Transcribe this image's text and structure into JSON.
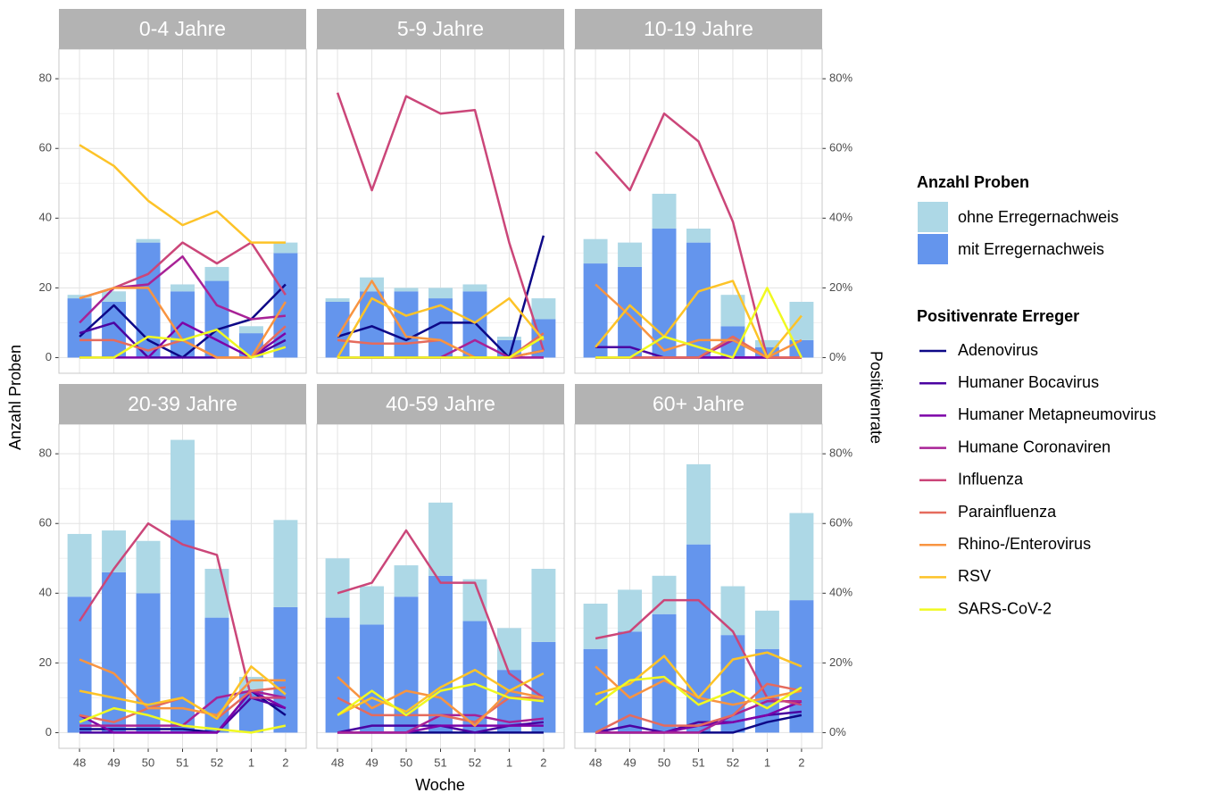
{
  "chart_data": {
    "type": "bar",
    "x_label": "Woche",
    "y_label": "Anzahl Proben",
    "y2_label": "Positivenrate",
    "bar_legend_title": "Anzahl Proben",
    "line_legend_title": "Positivenrate Erreger",
    "categories": [
      "48",
      "49",
      "50",
      "51",
      "52",
      "1",
      "2"
    ],
    "facets": [
      "0-4 Jahre",
      "5-9 Jahre",
      "10-19 Jahre",
      "20-39 Jahre",
      "40-59 Jahre",
      "60+ Jahre"
    ],
    "ylim": [
      -4.5,
      88.5
    ],
    "yticks": [
      0,
      20,
      40,
      60,
      80
    ],
    "y2lim": [
      -4.5,
      88.5
    ],
    "y2ticks": [
      {
        "value": 0,
        "label": "0%"
      },
      {
        "value": 20,
        "label": "20%"
      },
      {
        "value": 40,
        "label": "40%"
      },
      {
        "value": 60,
        "label": "60%"
      },
      {
        "value": 80,
        "label": "80%"
      }
    ],
    "grid": true,
    "series": [
      {
        "name": "ohne Erregernachweis",
        "type": "bar",
        "color": "#add8e6",
        "values": [
          [
            1,
            3,
            1,
            2,
            4,
            2,
            3
          ],
          [
            1,
            4,
            1,
            3,
            2,
            1,
            6
          ],
          [
            7,
            7,
            10,
            4,
            9,
            2,
            11
          ],
          [
            18,
            12,
            15,
            23,
            14,
            4,
            25
          ],
          [
            17,
            11,
            9,
            21,
            12,
            12,
            21
          ],
          [
            13,
            12,
            11,
            23,
            14,
            11,
            25
          ]
        ]
      },
      {
        "name": "mit Erregernachweis",
        "type": "bar",
        "color": "#6495ed",
        "values": [
          [
            17,
            16,
            33,
            19,
            22,
            7,
            30
          ],
          [
            16,
            19,
            19,
            17,
            19,
            5,
            11
          ],
          [
            27,
            26,
            37,
            33,
            9,
            3,
            5
          ],
          [
            39,
            46,
            40,
            61,
            33,
            12,
            36
          ],
          [
            33,
            31,
            39,
            45,
            32,
            18,
            26
          ],
          [
            24,
            29,
            34,
            54,
            28,
            24,
            38
          ]
        ]
      },
      {
        "name": "Adenovirus",
        "type": "line",
        "axis": "y2",
        "color": "#0d0887",
        "values": [
          [
            6,
            15,
            5,
            0,
            8,
            11,
            21
          ],
          [
            6,
            9,
            5,
            10,
            10,
            0,
            35
          ],
          [
            0,
            0,
            0,
            0,
            0,
            0,
            0
          ],
          [
            1,
            1,
            1,
            1,
            0,
            12,
            5
          ],
          [
            0,
            0,
            0,
            0,
            0,
            0,
            0
          ],
          [
            0,
            0,
            0,
            0,
            0,
            3,
            5
          ]
        ]
      },
      {
        "name": "Humaner Bocavirus",
        "type": "line",
        "axis": "y2",
        "color": "#4b03a1",
        "values": [
          [
            7,
            10,
            0,
            0,
            0,
            0,
            5
          ],
          [
            0,
            0,
            0,
            0,
            0,
            0,
            0
          ],
          [
            3,
            3,
            0,
            0,
            0,
            0,
            0
          ],
          [
            0,
            0,
            0,
            0,
            0,
            10,
            7
          ],
          [
            0,
            2,
            2,
            2,
            0,
            2,
            3
          ],
          [
            0,
            2,
            0,
            3,
            3,
            5,
            6
          ]
        ]
      },
      {
        "name": "Humaner Metapneumovirus",
        "type": "line",
        "axis": "y2",
        "color": "#7d03a8",
        "values": [
          [
            0,
            0,
            0,
            10,
            5,
            0,
            7
          ],
          [
            0,
            0,
            0,
            0,
            0,
            0,
            2
          ],
          [
            0,
            0,
            0,
            0,
            0,
            0,
            0
          ],
          [
            5,
            0,
            0,
            0,
            0,
            12,
            7
          ],
          [
            0,
            0,
            0,
            2,
            2,
            2,
            2
          ],
          [
            0,
            0,
            0,
            2,
            3,
            5,
            9
          ]
        ]
      },
      {
        "name": "Humane Coronaviren",
        "type": "line",
        "axis": "y2",
        "color": "#a82296",
        "values": [
          [
            10,
            20,
            21,
            29,
            15,
            11,
            12
          ],
          [
            0,
            0,
            0,
            0,
            5,
            0,
            0
          ],
          [
            0,
            0,
            0,
            0,
            5,
            0,
            0
          ],
          [
            2,
            2,
            2,
            2,
            10,
            12,
            10
          ],
          [
            0,
            0,
            0,
            5,
            5,
            3,
            4
          ],
          [
            0,
            0,
            0,
            0,
            5,
            9,
            9
          ]
        ]
      },
      {
        "name": "Influenza",
        "type": "line",
        "axis": "y2",
        "color": "#cb4679",
        "values": [
          [
            17,
            20,
            24,
            33,
            27,
            33,
            18
          ],
          [
            76,
            48,
            75,
            70,
            71,
            33,
            2
          ],
          [
            59,
            48,
            70,
            62,
            39,
            0,
            0
          ],
          [
            32,
            47,
            60,
            54,
            51,
            10,
            10
          ],
          [
            40,
            43,
            58,
            43,
            43,
            17,
            10
          ],
          [
            27,
            29,
            38,
            38,
            29,
            10,
            8
          ]
        ]
      },
      {
        "name": "Parainfluenza",
        "type": "line",
        "axis": "y2",
        "color": "#e56b5d",
        "values": [
          [
            5,
            5,
            2,
            5,
            0,
            0,
            9
          ],
          [
            5,
            4,
            4,
            5,
            0,
            0,
            7
          ],
          [
            0,
            0,
            0,
            0,
            6,
            0,
            0
          ],
          [
            5,
            3,
            7,
            10,
            4,
            12,
            13
          ],
          [
            10,
            5,
            5,
            5,
            3,
            10,
            10
          ],
          [
            0,
            5,
            2,
            2,
            5,
            14,
            12
          ]
        ]
      },
      {
        "name": "Rhino-/Enterovirus",
        "type": "line",
        "axis": "y2",
        "color": "#f89441",
        "values": [
          [
            17,
            20,
            20,
            5,
            0,
            0,
            16
          ],
          [
            6,
            22,
            6,
            5,
            0,
            0,
            2
          ],
          [
            21,
            12,
            2,
            5,
            5,
            0,
            5
          ],
          [
            21,
            17,
            7,
            7,
            5,
            15,
            15
          ],
          [
            16,
            7,
            12,
            10,
            2,
            12,
            10
          ],
          [
            19,
            10,
            15,
            10,
            8,
            10,
            12
          ]
        ]
      },
      {
        "name": "RSV",
        "type": "line",
        "axis": "y2",
        "color": "#fdc328",
        "values": [
          [
            61,
            55,
            45,
            38,
            42,
            33,
            33
          ],
          [
            0,
            17,
            12,
            15,
            10,
            17,
            5
          ],
          [
            3,
            15,
            6,
            19,
            22,
            0,
            12
          ],
          [
            12,
            10,
            8,
            10,
            4,
            19,
            11
          ],
          [
            5,
            10,
            6,
            13,
            18,
            12,
            17
          ],
          [
            11,
            14,
            22,
            10,
            21,
            23,
            19
          ]
        ]
      },
      {
        "name": "SARS-CoV-2",
        "type": "line",
        "axis": "y2",
        "color": "#f0f921",
        "values": [
          [
            0,
            0,
            6,
            5,
            8,
            0,
            3
          ],
          [
            0,
            0,
            0,
            0,
            0,
            0,
            6
          ],
          [
            0,
            0,
            6,
            3,
            0,
            20,
            0
          ],
          [
            3,
            7,
            5,
            2,
            1,
            0,
            2
          ],
          [
            5,
            12,
            5,
            12,
            14,
            10,
            9
          ],
          [
            8,
            15,
            16,
            8,
            12,
            7,
            13
          ]
        ]
      }
    ]
  }
}
